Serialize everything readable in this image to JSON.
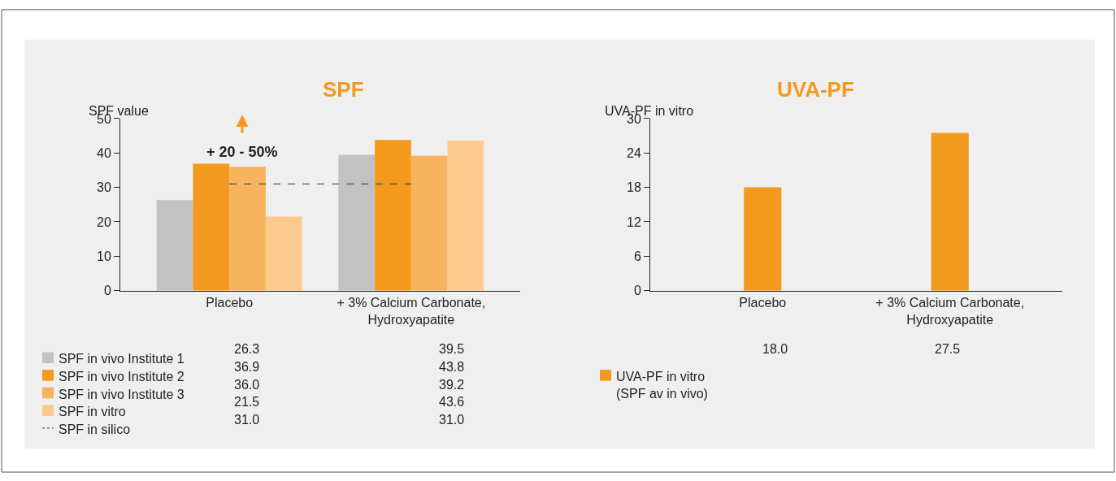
{
  "chart_data": [
    {
      "type": "bar",
      "title": "SPF",
      "ylabel": "SPF value",
      "categories": [
        "Placebo",
        "+ 3% Calcium Carbonate,\nHydroxyapatite"
      ],
      "ylim": [
        0,
        50
      ],
      "yticks": [
        0,
        10,
        20,
        30,
        40,
        50
      ],
      "grid": false,
      "legend": "bottom left",
      "annotations": [
        "+ 20 - 50%"
      ],
      "series": [
        {
          "name": "SPF in vivo Institute 1",
          "color": "#c2c2c2",
          "values": [
            26.3,
            39.5
          ],
          "value_labels": [
            "26.3",
            "39.5"
          ]
        },
        {
          "name": "SPF in vivo Institute 2",
          "color": "#f39a1e",
          "values": [
            36.9,
            43.8
          ],
          "value_labels": [
            "36.9",
            "43.8"
          ]
        },
        {
          "name": "SPF in vivo Institute 3",
          "color": "#f8b35f",
          "values": [
            36.0,
            39.2
          ],
          "value_labels": [
            "36.0",
            "39.2"
          ]
        },
        {
          "name": "SPF in vitro",
          "color": "#fcca8c",
          "values": [
            21.5,
            43.6
          ],
          "value_labels": [
            "21.5",
            "43.6"
          ]
        },
        {
          "name": "SPF in silico",
          "type": "line",
          "line_style": "dashed",
          "color": "#333333",
          "values": [
            31.0,
            31.0
          ],
          "value_labels": [
            "31.0",
            "31.0"
          ]
        }
      ]
    },
    {
      "type": "bar",
      "title": "UVA-PF",
      "ylabel": "UVA-PF in vitro",
      "categories": [
        "Placebo",
        "+ 3% Calcium Carbonate,\nHydroxyapatite"
      ],
      "ylim": [
        0,
        30
      ],
      "yticks": [
        0,
        6,
        12,
        18,
        24,
        30
      ],
      "grid": false,
      "legend": "bottom left",
      "series": [
        {
          "name": "UVA-PF in vitro\n(SPF av in vivo)",
          "color": "#f39a1e",
          "values": [
            18.0,
            27.5
          ],
          "value_labels": [
            "18.0",
            "27.5"
          ]
        }
      ]
    }
  ]
}
